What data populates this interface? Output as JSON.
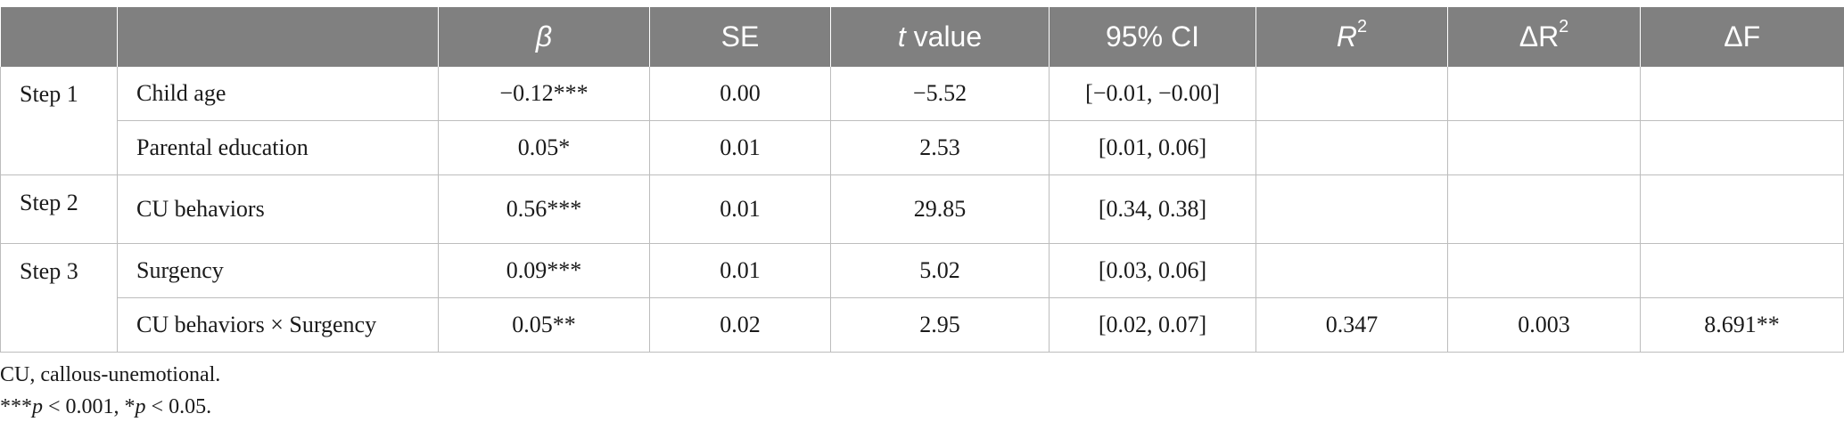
{
  "headers": {
    "blank1": "",
    "blank2": "",
    "beta": "β",
    "se": "SE",
    "t_italic": "t",
    "t_rest": " value",
    "ci": "95% CI",
    "r2_base": "R",
    "r2_sup": "2",
    "dr2_base": "ΔR",
    "dr2_sup": "2",
    "df": "ΔF"
  },
  "steps": {
    "step1": "Step 1",
    "step2": "Step 2",
    "step3": "Step 3"
  },
  "rows": [
    {
      "variable": "Child age",
      "beta": "−0.12***",
      "se": "0.00",
      "t": "−5.52",
      "ci": "[−0.01, −0.00]",
      "r2": "",
      "dr2": "",
      "df": ""
    },
    {
      "variable": "Parental education",
      "beta": "0.05*",
      "se": "0.01",
      "t": "2.53",
      "ci": "[0.01, 0.06]",
      "r2": "",
      "dr2": "",
      "df": ""
    },
    {
      "variable": "CU behaviors",
      "beta": "0.56***",
      "se": "0.01",
      "t": "29.85",
      "ci": "[0.34, 0.38]",
      "r2": "",
      "dr2": "",
      "df": ""
    },
    {
      "variable": "Surgency",
      "beta": "0.09***",
      "se": "0.01",
      "t": "5.02",
      "ci": "[0.03, 0.06]",
      "r2": "",
      "dr2": "",
      "df": ""
    },
    {
      "variable": "CU behaviors × Surgency",
      "beta": "0.05**",
      "se": "0.02",
      "t": "2.95",
      "ci": "[0.02, 0.07]",
      "r2": "0.347",
      "dr2": "0.003",
      "df": "8.691**"
    }
  ],
  "footnotes": {
    "abbrev": "CU, callous-unemotional.",
    "sig_stars1": "***",
    "sig_p1": "p",
    "sig_val1": " < 0.001, *",
    "sig_p2": "p",
    "sig_val2": " < 0.05."
  }
}
